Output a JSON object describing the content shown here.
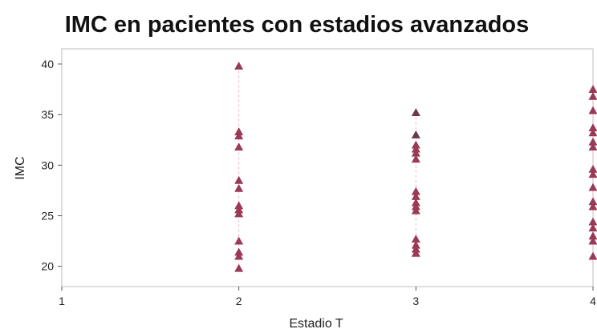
{
  "chart_data": {
    "type": "scatter",
    "title": "IMC en pacientes con estadios avanzados",
    "xlabel": "Estadio T",
    "ylabel": "IMC",
    "xlim": [
      1,
      4
    ],
    "ylim": [
      18,
      41.5
    ],
    "xticks": [
      "1",
      "2",
      "3",
      "4"
    ],
    "yticks": [
      "20",
      "25",
      "30",
      "35",
      "40"
    ],
    "grid": false,
    "marker": "triangle",
    "colors": {
      "marker": "#9b3a55",
      "marker_dark": "#6e3848",
      "frame": "#bdbdbd",
      "drop_line": "#e2b7c4"
    },
    "series": [
      {
        "values": [
          {
            "x": 2,
            "y": 39.8
          },
          {
            "x": 2,
            "y": 33.3
          },
          {
            "x": 2,
            "y": 32.9
          },
          {
            "x": 2,
            "y": 31.8
          },
          {
            "x": 2,
            "y": 28.5
          },
          {
            "x": 2,
            "y": 27.7
          },
          {
            "x": 2,
            "y": 26.0
          },
          {
            "x": 2,
            "y": 25.6
          },
          {
            "x": 2,
            "y": 25.2
          },
          {
            "x": 2,
            "y": 22.5
          },
          {
            "x": 2,
            "y": 21.4
          },
          {
            "x": 2,
            "y": 21.0
          },
          {
            "x": 2,
            "y": 19.8
          },
          {
            "x": 3,
            "y": 35.2
          },
          {
            "x": 3,
            "y": 33.0
          },
          {
            "x": 3,
            "y": 32.0
          },
          {
            "x": 3,
            "y": 31.6
          },
          {
            "x": 3,
            "y": 31.2
          },
          {
            "x": 3,
            "y": 30.6
          },
          {
            "x": 3,
            "y": 27.4
          },
          {
            "x": 3,
            "y": 26.9
          },
          {
            "x": 3,
            "y": 26.3
          },
          {
            "x": 3,
            "y": 25.9
          },
          {
            "x": 3,
            "y": 25.5
          },
          {
            "x": 3,
            "y": 22.7
          },
          {
            "x": 3,
            "y": 22.1
          },
          {
            "x": 3,
            "y": 21.7
          },
          {
            "x": 3,
            "y": 21.3
          },
          {
            "x": 4,
            "y": 37.5
          },
          {
            "x": 4,
            "y": 36.8
          },
          {
            "x": 4,
            "y": 35.4
          },
          {
            "x": 4,
            "y": 33.7
          },
          {
            "x": 4,
            "y": 33.2
          },
          {
            "x": 4,
            "y": 32.3
          },
          {
            "x": 4,
            "y": 31.8
          },
          {
            "x": 4,
            "y": 29.6
          },
          {
            "x": 4,
            "y": 29.1
          },
          {
            "x": 4,
            "y": 27.8
          },
          {
            "x": 4,
            "y": 26.4
          },
          {
            "x": 4,
            "y": 25.9
          },
          {
            "x": 4,
            "y": 24.4
          },
          {
            "x": 4,
            "y": 23.8
          },
          {
            "x": 4,
            "y": 23.0
          },
          {
            "x": 4,
            "y": 22.5
          },
          {
            "x": 4,
            "y": 21.0
          }
        ]
      }
    ]
  }
}
